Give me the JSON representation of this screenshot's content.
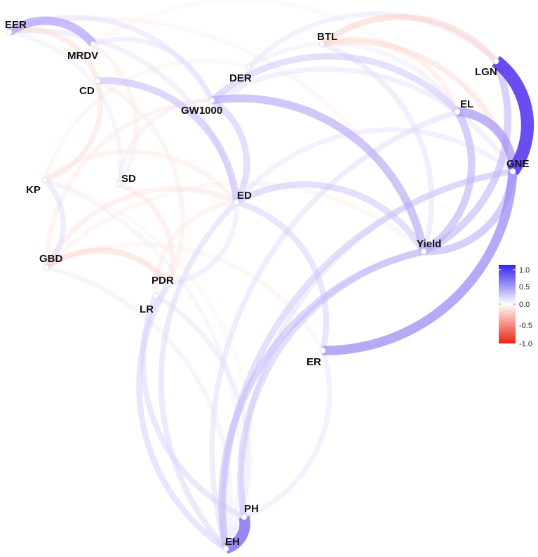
{
  "nodes": [
    {
      "id": "EER",
      "label": "EER"
    },
    {
      "id": "MRDV",
      "label": "MRDV"
    },
    {
      "id": "CD",
      "label": "CD"
    },
    {
      "id": "BTL",
      "label": "BTL"
    },
    {
      "id": "DER",
      "label": "DER"
    },
    {
      "id": "GW1000",
      "label": "GW1000"
    },
    {
      "id": "LGN",
      "label": "LGN"
    },
    {
      "id": "EL",
      "label": "EL"
    },
    {
      "id": "GNE",
      "label": "GNE"
    },
    {
      "id": "SD",
      "label": "SD"
    },
    {
      "id": "KP",
      "label": "KP"
    },
    {
      "id": "ED",
      "label": "ED"
    },
    {
      "id": "Yield",
      "label": "Yield"
    },
    {
      "id": "GBD",
      "label": "GBD"
    },
    {
      "id": "PDR",
      "label": "PDR"
    },
    {
      "id": "LR",
      "label": "LR"
    },
    {
      "id": "ER",
      "label": "ER"
    },
    {
      "id": "PH",
      "label": "PH"
    },
    {
      "id": "EH",
      "label": "EH"
    }
  ],
  "edges": [
    {
      "from": "LGN",
      "to": "GNE",
      "weight": 0.95
    },
    {
      "from": "PH",
      "to": "EH",
      "weight": 0.75
    },
    {
      "from": "GNE",
      "to": "ER",
      "weight": 0.6
    },
    {
      "from": "EL",
      "to": "GNE",
      "weight": 0.55
    },
    {
      "from": "EER",
      "to": "MRDV",
      "weight": 0.5
    },
    {
      "from": "GW1000",
      "to": "Yield",
      "weight": 0.45
    },
    {
      "from": "GNE",
      "to": "Yield",
      "weight": 0.4
    },
    {
      "from": "LGN",
      "to": "Yield",
      "weight": 0.38
    },
    {
      "from": "EL",
      "to": "Yield",
      "weight": 0.4
    },
    {
      "from": "CD",
      "to": "ED",
      "weight": 0.35
    },
    {
      "from": "GW1000",
      "to": "ED",
      "weight": 0.3
    },
    {
      "from": "EH",
      "to": "Yield",
      "weight": 0.35
    },
    {
      "from": "PH",
      "to": "Yield",
      "weight": 0.3
    },
    {
      "from": "EH",
      "to": "GNE",
      "weight": 0.3
    },
    {
      "from": "ED",
      "to": "Yield",
      "weight": 0.3
    },
    {
      "from": "GW1000",
      "to": "EL",
      "weight": 0.3
    },
    {
      "from": "EH",
      "to": "PDR",
      "weight": 0.25
    },
    {
      "from": "PH",
      "to": "LR",
      "weight": 0.22
    },
    {
      "from": "EH",
      "to": "ED",
      "weight": 0.22
    },
    {
      "from": "ED",
      "to": "ER",
      "weight": 0.25
    },
    {
      "from": "KP",
      "to": "GBD",
      "weight": 0.2
    },
    {
      "from": "EER",
      "to": "GW1000",
      "weight": 0.18
    },
    {
      "from": "EER",
      "to": "ED",
      "weight": 0.15
    },
    {
      "from": "MRDV",
      "to": "GW1000",
      "weight": 0.15
    },
    {
      "from": "DER",
      "to": "LGN",
      "weight": 0.15
    },
    {
      "from": "DER",
      "to": "GW1000",
      "weight": 0.15
    },
    {
      "from": "BTL",
      "to": "Yield",
      "weight": 0.18
    },
    {
      "from": "SD",
      "to": "GW1000",
      "weight": 0.12
    },
    {
      "from": "ED",
      "to": "PDR",
      "weight": 0.15
    },
    {
      "from": "GBD",
      "to": "EH",
      "weight": 0.12
    },
    {
      "from": "LR",
      "to": "EH",
      "weight": 0.15
    },
    {
      "from": "ER",
      "to": "PH",
      "weight": 0.15
    },
    {
      "from": "EER",
      "to": "SD",
      "weight": 0.12
    },
    {
      "from": "DER",
      "to": "EL",
      "weight": 0.12
    },
    {
      "from": "EH",
      "to": "EL",
      "weight": 0.2
    },
    {
      "from": "PH",
      "to": "GNE",
      "weight": 0.18
    },
    {
      "from": "KP",
      "to": "EH",
      "weight": 0.1
    },
    {
      "from": "GW1000",
      "to": "GNE",
      "weight": 0.15
    },
    {
      "from": "ED",
      "to": "GNE",
      "weight": 0.15
    },
    {
      "from": "BTL",
      "to": "LGN",
      "weight": -0.25
    },
    {
      "from": "BTL",
      "to": "GNE",
      "weight": -0.2
    },
    {
      "from": "EER",
      "to": "CD",
      "weight": -0.2
    },
    {
      "from": "CD",
      "to": "KP",
      "weight": -0.18
    },
    {
      "from": "GBD",
      "to": "PDR",
      "weight": -0.22
    },
    {
      "from": "GBD",
      "to": "ED",
      "weight": -0.15
    },
    {
      "from": "SD",
      "to": "PDR",
      "weight": -0.15
    },
    {
      "from": "KP",
      "to": "ED",
      "weight": -0.12
    },
    {
      "from": "MRDV",
      "to": "SD",
      "weight": -0.12
    },
    {
      "from": "GBD",
      "to": "GW1000",
      "weight": -0.12
    },
    {
      "from": "KP",
      "to": "DER",
      "weight": -0.1
    },
    {
      "from": "EER",
      "to": "Yield",
      "weight": -0.1
    },
    {
      "from": "CD",
      "to": "PDR",
      "weight": -0.12
    },
    {
      "from": "GBD",
      "to": "Yield",
      "weight": -0.1
    },
    {
      "from": "KP",
      "to": "PH",
      "weight": -0.08
    },
    {
      "from": "LR",
      "to": "ED",
      "weight": -0.12
    },
    {
      "from": "BTL",
      "to": "EL",
      "weight": -0.15
    },
    {
      "from": "MRDV",
      "to": "EL",
      "weight": -0.08
    },
    {
      "from": "GBD",
      "to": "ER",
      "weight": -0.1
    }
  ],
  "legend": {
    "ticks": [
      "1.0",
      "0.5",
      "0.0",
      "-0.5",
      "-1.0"
    ],
    "colors": {
      "positive": "#5533ee",
      "neutral": "#ffffff",
      "negative": "#ee3311"
    }
  }
}
